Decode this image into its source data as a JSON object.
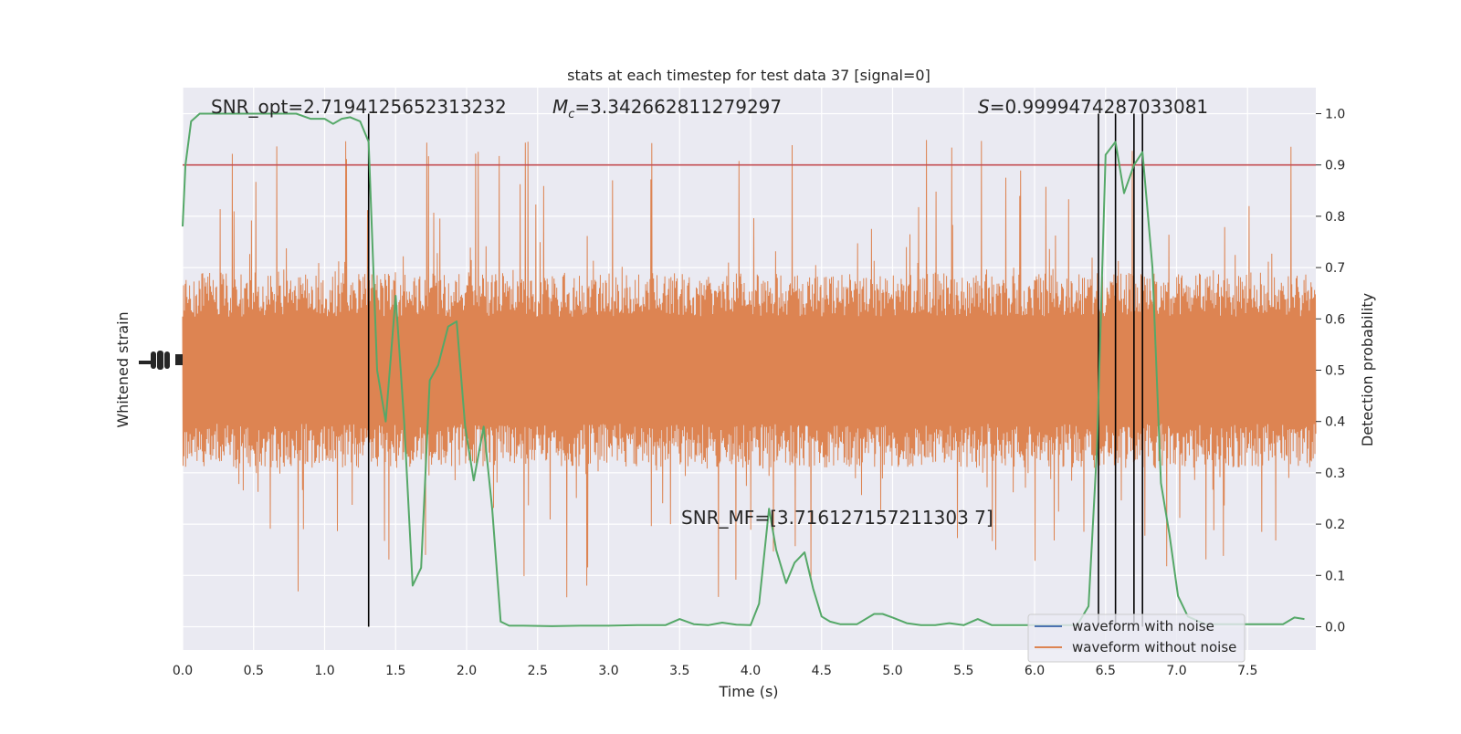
{
  "chart_data": {
    "type": "line",
    "title": "stats at each timestep for test data 37 [signal=0]",
    "xlabel": "Time (s)",
    "ylabel_left": "Whitened strain",
    "ylabel_right": "Detection probability",
    "xlim": [
      0.0,
      8.0
    ],
    "ylim_right": [
      -0.05,
      1.05
    ],
    "x_ticks": [
      "0.0",
      "0.5",
      "1.0",
      "1.5",
      "2.0",
      "2.5",
      "3.0",
      "3.5",
      "4.0",
      "4.5",
      "5.0",
      "5.5",
      "6.0",
      "6.5",
      "7.0",
      "7.5"
    ],
    "y_ticks_right": [
      "0.0",
      "0.1",
      "0.2",
      "0.3",
      "0.4",
      "0.5",
      "0.6",
      "0.7",
      "0.8",
      "0.9",
      "1.0"
    ],
    "grid": true,
    "legend_position": "lower-right",
    "annotations": {
      "snr_opt": "SNR_opt=2.7194125652313232",
      "mc_symbol": "M",
      "mc_sub": "c",
      "mc_value": "=3.342662811279297",
      "s_symbol": "S",
      "s_value": "=0.9999474287033081",
      "snr_mf": "SNR_MF=[3.716127157211303 7]"
    },
    "threshold": {
      "name": "threshold",
      "value": 0.9,
      "color": "#c44e52"
    },
    "vertical_markers": [
      1.31,
      6.45,
      6.57,
      6.7,
      6.76
    ],
    "series": [
      {
        "name": "waveform with noise",
        "color": "#4c72b0",
        "values": []
      },
      {
        "name": "waveform without noise",
        "color": "#dd8452",
        "band_center_prob": 0.5,
        "band_core_halfwidth_prob": 0.19,
        "band_spike_max_prob": 0.45
      },
      {
        "name": "Detection probability",
        "color": "#55a868",
        "x": [
          0.0,
          0.02,
          0.06,
          0.12,
          0.2,
          0.3,
          0.4,
          0.5,
          0.6,
          0.7,
          0.8,
          0.9,
          1.0,
          1.06,
          1.12,
          1.18,
          1.25,
          1.31,
          1.37,
          1.43,
          1.5,
          1.56,
          1.62,
          1.68,
          1.74,
          1.8,
          1.87,
          1.93,
          1.99,
          2.05,
          2.12,
          2.18,
          2.24,
          2.3,
          2.4,
          2.6,
          2.8,
          3.0,
          3.2,
          3.4,
          3.5,
          3.6,
          3.7,
          3.8,
          3.9,
          4.0,
          4.06,
          4.13,
          4.18,
          4.25,
          4.31,
          4.38,
          4.44,
          4.5,
          4.56,
          4.63,
          4.75,
          4.87,
          4.93,
          5.0,
          5.1,
          5.2,
          5.3,
          5.4,
          5.5,
          5.6,
          5.7,
          5.8,
          5.9,
          6.0,
          6.1,
          6.2,
          6.3,
          6.38,
          6.44,
          6.5,
          6.57,
          6.63,
          6.7,
          6.76,
          6.83,
          6.89,
          6.95,
          7.01,
          7.08,
          7.2,
          7.4,
          7.6,
          7.75,
          7.83,
          7.9
        ],
        "values": [
          0.78,
          0.9,
          0.985,
          1.0,
          1.0,
          1.0,
          1.0,
          1.0,
          1.0,
          1.0,
          1.0,
          0.99,
          0.99,
          0.98,
          0.99,
          0.993,
          0.985,
          0.945,
          0.5,
          0.4,
          0.645,
          0.4,
          0.08,
          0.115,
          0.48,
          0.51,
          0.585,
          0.595,
          0.39,
          0.285,
          0.39,
          0.23,
          0.01,
          0.002,
          0.002,
          0.001,
          0.002,
          0.002,
          0.003,
          0.003,
          0.015,
          0.005,
          0.003,
          0.008,
          0.004,
          0.003,
          0.045,
          0.23,
          0.15,
          0.085,
          0.125,
          0.145,
          0.075,
          0.02,
          0.01,
          0.005,
          0.005,
          0.025,
          0.025,
          0.018,
          0.007,
          0.003,
          0.003,
          0.007,
          0.003,
          0.015,
          0.003,
          0.003,
          0.003,
          0.003,
          0.003,
          0.003,
          0.003,
          0.04,
          0.35,
          0.92,
          0.945,
          0.845,
          0.9,
          0.925,
          0.7,
          0.28,
          0.18,
          0.06,
          0.02,
          0.005,
          0.005,
          0.005,
          0.005,
          0.018,
          0.015
        ]
      }
    ]
  }
}
